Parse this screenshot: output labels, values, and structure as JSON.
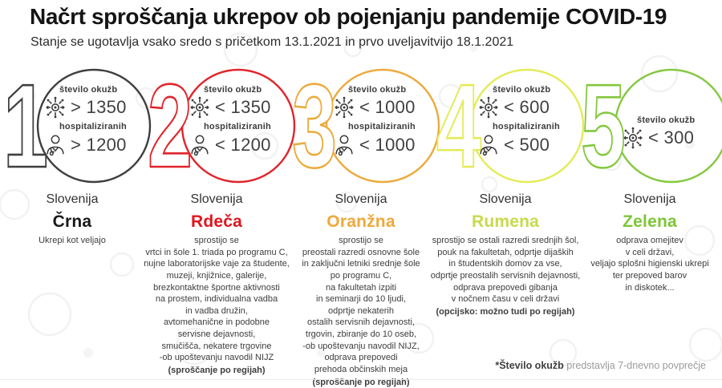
{
  "title": "Načrt sproščanja ukrepov ob pojenjanju pandemije COVID-19",
  "subtitle": "Stanje se ugotavlja vsako sredo s pričetkom 13.1.2021 in prvo uveljavitvijo 18.1.2021",
  "labels": {
    "infections": "število okužb",
    "hospitalized": "hospitaliziranih"
  },
  "footnote": {
    "prefix": "*Število okužb",
    "text": " predstavlja 7-dnevno povprečje"
  },
  "icon_color": "#3b3b3b",
  "phases": [
    {
      "number": "1",
      "ring_color": "#3f3f3f",
      "name_color": "#191919",
      "region": "Slovenija",
      "name": "Črna",
      "infections": "> 1350",
      "hospitalized": "> 1200",
      "description_lines": [
        "Ukrepi kot veljajo"
      ],
      "bold_line": ""
    },
    {
      "number": "2",
      "ring_color": "#e0242b",
      "name_color": "#e0161d",
      "region": "Slovenija",
      "name": "Rdeča",
      "infections": "< 1350",
      "hospitalized": "< 1200",
      "description_lines": [
        "sprostijo se",
        "vrtci in šole 1. triada po programu C,",
        "nujne laboratorijske vaje za študente,",
        "muzeji, knjižnice, galerije,",
        "brezkontaktne športne aktivnosti",
        "na prostem, individualna vadba",
        "in vadba družin,",
        "avtomehanične in podobne",
        "servisne dejavnosti,",
        "smučišča, nekatere trgovine",
        "-ob upoštevanju navodil NIJZ"
      ],
      "bold_line": "(sproščanje po regijah)"
    },
    {
      "number": "3",
      "ring_color": "#ecaa3c",
      "name_color": "#f0a83a",
      "region": "Slovenija",
      "name": "Oranžna",
      "infections": "< 1000",
      "hospitalized": "< 1000",
      "description_lines": [
        "sprostijo se",
        "preostali razredi osnovne šole",
        "in zaključni letniki srednje šole",
        "po programu C,",
        "na fakultetah izpiti",
        "in seminarji do 10 ljudi,",
        "odprtje nekaterih",
        "ostalih servisnih dejavnosti,",
        "trgovin, zbiranje do 10 oseb,",
        "-ob upoštevanju navodil NIJZ,",
        "odprava prepovedi",
        "prehoda občinskih meja"
      ],
      "bold_line": "(sproščanje po regijah)"
    },
    {
      "number": "4",
      "ring_color": "#e4eb57",
      "name_color": "#c7da4b",
      "region": "Slovenija",
      "name": "Rumena",
      "infections": "< 600",
      "hospitalized": "< 500",
      "description_lines": [
        "sprostijo se ostali razredi srednjih šol,",
        "pouk na fakultetah, odprtje dijaških",
        "in študentskih domov za vse,",
        "odprtje preostalih servisnih dejavnosti,",
        "odprava prepovedi gibanja",
        "v nočnem času v celi državi"
      ],
      "bold_line": "(opcijsko: možno tudi po regijah)"
    },
    {
      "number": "5",
      "ring_color": "#84c83f",
      "name_color": "#7dc637",
      "region": "Slovenija",
      "name": "Zelena",
      "infections": "< 300",
      "hospitalized": null,
      "description_lines": [
        "odprava omejitev",
        "v celi državi,",
        "veljajo splošni higienski ukrepi",
        "ter prepoved barov",
        "in diskotek..."
      ],
      "bold_line": ""
    }
  ]
}
